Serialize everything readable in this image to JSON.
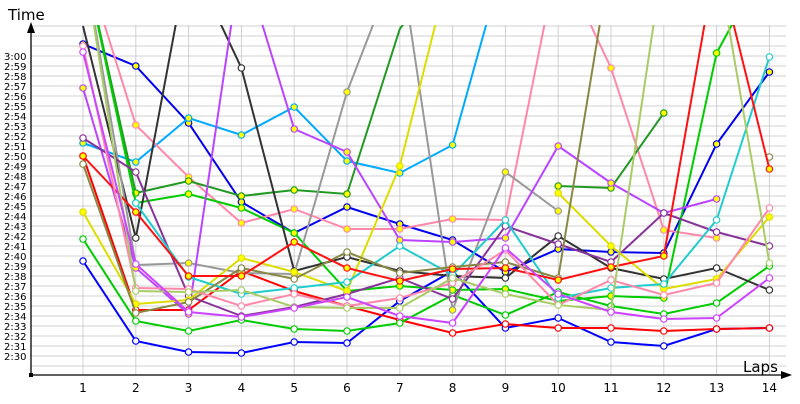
{
  "chart_data": {
    "type": "line",
    "xlabel": "Laps",
    "ylabel": "Time",
    "categories": [
      "1",
      "2",
      "3",
      "4",
      "5",
      "6",
      "7",
      "8",
      "9",
      "10",
      "11",
      "12",
      "13",
      "14"
    ],
    "yticks": [
      "2:30",
      "2:31",
      "2:32",
      "2:33",
      "2:34",
      "2:35",
      "2:36",
      "2:37",
      "2:38",
      "2:39",
      "2:40",
      "2:41",
      "2:42",
      "2:43",
      "2:44",
      "2:45",
      "2:46",
      "2:47",
      "2:48",
      "2:49",
      "2:50",
      "2:51",
      "2:52",
      "2:53",
      "2:54",
      "2:55",
      "2:56",
      "2:57",
      "2:58",
      "2:59",
      "3:00"
    ],
    "ylim": [
      "2:29",
      "3:03"
    ],
    "grid": true,
    "series": [
      {
        "color": "#0000ff",
        "marker": "#ffffff",
        "values": [
          "2:39.5",
          "2:31.5",
          "2:30.4",
          "2:30.3",
          "2:31.4",
          "2:31.3",
          "2:35.5",
          "2:38.5",
          "2:32.8",
          "2:33.8",
          "2:31.4",
          "2:31.0",
          "2:32.7",
          "2:32.8"
        ]
      },
      {
        "color": "#ff0000",
        "marker": "#ffffff",
        "values": [
          "2:50.0",
          "2:34.6",
          "2:34.6",
          "2:38.5",
          "2:36.5",
          "2:35.0",
          "2:33.6",
          "2:32.3",
          "2:33.2",
          "2:32.8",
          "2:32.8",
          "2:32.5",
          "2:32.7",
          "2:32.8"
        ]
      },
      {
        "color": "#00cc00",
        "marker": "#ffffff",
        "values": [
          "2:41.7",
          "2:33.5",
          "2:32.5",
          "2:33.6",
          "2:32.7",
          "2:32.5",
          "2:33.3",
          "2:36.1",
          "2:34.1",
          "2:36.4",
          "2:35.0",
          "2:34.2",
          "2:35.3",
          "2:39.0"
        ]
      },
      {
        "color": "#0000ee",
        "marker": "#ffff00",
        "values": [
          "3:01.2",
          "2:59.0",
          "2:53.3",
          "2:45.4",
          "2:42.3",
          "2:44.9",
          "2:43.2",
          "2:41.6",
          "2:38.4",
          "2:40.7",
          "2:40.4",
          "2:40.3",
          "2:51.2",
          "2:58.4"
        ]
      },
      {
        "color": "#00aaff",
        "marker": "#ffff00",
        "values": [
          "2:51.3",
          "2:49.4",
          "2:53.8",
          "2:52.1",
          "2:54.9",
          "2:49.5",
          "2:48.3",
          "2:51.1",
          "3:10.0",
          null,
          null,
          null,
          null,
          null
        ]
      },
      {
        "color": "#ff88aa",
        "marker": "#ffff00",
        "values": [
          "3:10.0",
          "2:53.1",
          "2:47.9",
          "2:43.3",
          "2:44.7",
          "2:42.7",
          "2:42.7",
          "2:43.7",
          "2:43.6",
          "3:10.0",
          "2:58.8",
          "2:42.6",
          "2:41.8",
          null
        ]
      },
      {
        "color": "#229922",
        "marker": "#ffff00",
        "values": [
          "3:10.0",
          "2:46.3",
          "2:47.5",
          "2:46.0",
          "2:46.6",
          "2:46.2",
          "3:02.7",
          "3:10.0",
          null,
          "2:47.0",
          "2:46.8",
          "2:54.3",
          null,
          null
        ]
      },
      {
        "color": "#00cc00",
        "marker": "#ffff00",
        "values": [
          "3:10.0",
          "2:45.3",
          "2:46.2",
          "2:44.8",
          "2:42.3",
          "2:36.5",
          "2:37.0",
          "2:36.6",
          "2:36.7",
          "2:35.5",
          "2:36.0",
          "2:35.8",
          "3:00.3",
          "3:10.0"
        ]
      },
      {
        "color": "#333333",
        "marker": "#ffffff",
        "values": [
          "3:03.0",
          "2:41.8",
          "3:10.0",
          "2:58.8",
          "2:38.5",
          "2:39.9",
          "2:38.5",
          "2:38.0",
          "2:37.8",
          "2:42.0",
          "2:38.8",
          "2:37.7",
          "2:38.8",
          "2:36.6"
        ]
      },
      {
        "color": "#999999",
        "marker": "#ffff00",
        "values": [
          "3:10.0",
          "2:39.1",
          "2:39.3",
          "2:38.3",
          "2:38.2",
          "2:56.4",
          "3:10.0",
          "2:34.6",
          "2:48.4",
          "2:44.5",
          null,
          null,
          null,
          null
        ]
      },
      {
        "color": "#bb44ff",
        "marker": "#ffff00",
        "values": [
          "2:56.8",
          "2:38.8",
          "2:34.2",
          "3:10.0",
          "2:52.7",
          "2:50.4",
          "2:41.6",
          "2:41.4",
          "2:41.8",
          "2:51.0",
          "2:47.3",
          "2:44.3",
          "2:45.7",
          null
        ]
      },
      {
        "color": "#883399",
        "marker": "#ffffff",
        "values": [
          "2:51.8",
          "2:48.4",
          "2:36.0",
          "2:34.0",
          "2:34.9",
          "2:36.2",
          "2:37.8",
          "2:35.7",
          "2:43.0",
          "2:41.2",
          "2:39.4",
          "2:44.3",
          "2:42.4",
          "2:41.0"
        ]
      },
      {
        "color": "#dddd00",
        "marker": "#ffff00",
        "values": [
          "2:44.4",
          "2:35.2",
          "2:35.6",
          "2:39.8",
          "2:38.4",
          "2:36.5",
          "2:49.0",
          "3:10.0",
          null,
          "2:46.3",
          "2:41.0",
          "2:36.7",
          "2:37.7",
          "2:43.9"
        ]
      },
      {
        "color": "#22cccc",
        "marker": "#ffffff",
        "values": [
          null,
          "2:45.3",
          "2:37.9",
          "2:36.2",
          "2:36.8",
          "2:37.4",
          "2:41.0",
          "2:38.1",
          "2:43.6",
          "2:35.8",
          "2:36.8",
          "2:37.2",
          "2:43.6",
          "2:59.9"
        ]
      },
      {
        "color": "#888844",
        "marker": "#ffffff",
        "values": [
          "2:49.2",
          "2:34.3",
          "2:35.4",
          "2:38.8",
          "2:37.7",
          "2:40.4",
          "2:38.3",
          "2:38.9",
          "2:39.4",
          "2:37.8",
          "3:10.0",
          null,
          null,
          "2:49.9"
        ]
      },
      {
        "color": "#ff1111",
        "marker": "#ffff00",
        "values": [
          "2:50.0",
          "2:44.4",
          "2:38.0",
          "2:38.0",
          "2:41.4",
          "2:38.8",
          "2:37.5",
          "2:38.7",
          "2:38.8",
          "2:37.6",
          "2:38.9",
          "2:40.0",
          "3:10.0",
          "2:48.7"
        ]
      },
      {
        "color": "#ff88aa",
        "marker": "#ffffff",
        "values": [
          "3:01.0",
          "2:36.8",
          "2:36.7",
          "2:35.0",
          "2:36.2",
          "2:35.0",
          "2:35.8",
          "2:37.3",
          "2:40.6",
          "2:35.1",
          "2:37.6",
          "2:36.1",
          "2:37.3",
          "2:44.8"
        ]
      },
      {
        "color": "#aacc66",
        "marker": "#ffffff",
        "values": [
          "3:10.0",
          "2:36.5",
          "2:36.4",
          "2:36.6",
          "2:34.9",
          "2:34.8",
          "2:34.8",
          "2:37.8",
          "2:36.2",
          "2:35.1",
          "2:34.6",
          "3:10.0",
          "3:10.0",
          "2:39.3"
        ]
      },
      {
        "color": "#cc44ff",
        "marker": "#ffffff",
        "values": [
          "3:00.4",
          "2:39.2",
          "2:34.4",
          "2:33.9",
          "2:34.8",
          "2:35.9",
          "2:34.0",
          "2:33.3",
          "2:40.8",
          "2:36.2",
          "2:34.4",
          "2:33.7",
          "2:33.8",
          "2:37.8"
        ]
      }
    ]
  }
}
